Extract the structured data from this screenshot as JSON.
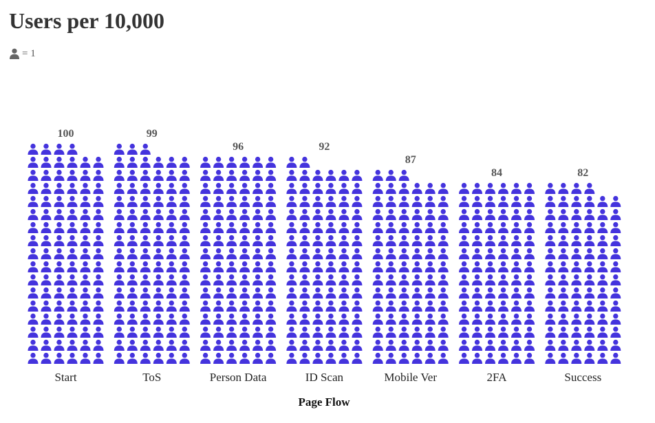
{
  "chart_data": {
    "type": "bar",
    "subtype": "pictograph",
    "title": "Users per 10,000",
    "legend": {
      "icon": "person-icon",
      "label": "= 1",
      "placement": "top-left"
    },
    "xlabel": "Page Flow",
    "ylabel": "",
    "categories": [
      "Start",
      "ToS",
      "Person Data",
      "ID Scan",
      "Mobile Ver",
      "2FA",
      "Success"
    ],
    "values": [
      100,
      99,
      96,
      92,
      87,
      84,
      82
    ],
    "icons_per_row": 6,
    "icon_color": "#4433dd",
    "grid": false
  }
}
